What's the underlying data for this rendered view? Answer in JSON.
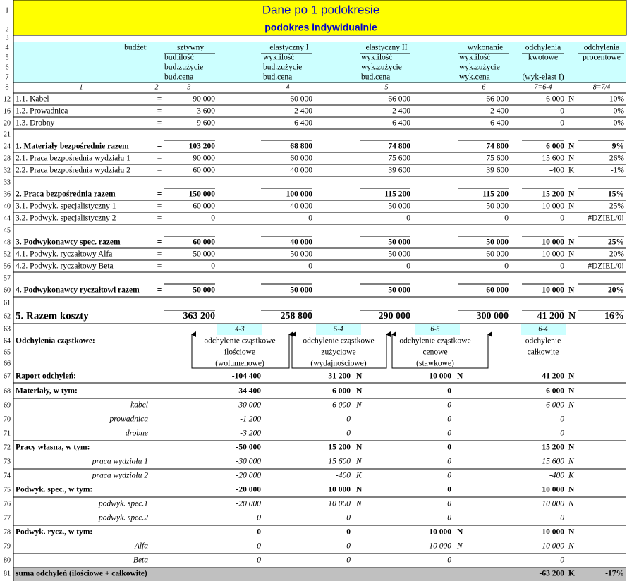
{
  "header": {
    "title": "Dane po 1 podokresie",
    "subtitle": "podokres indywidualnie"
  },
  "upper": {
    "rows": [
      {
        "n": "1"
      },
      {
        "n": "2"
      },
      {
        "n": "3"
      },
      {
        "n": "4",
        "label": "budżet:",
        "c3": "sztywny",
        "c4": "elastyczny I",
        "c5": "elastyczny II",
        "c6": "wykonanie",
        "c7": "odchylenia",
        "c8": "odchylenia"
      },
      {
        "n": "5",
        "c3": "bud.ilość",
        "c4": "wyk.ilość",
        "c5": "wyk.ilość",
        "c6": "wyk.ilość",
        "c7": "kwotowe",
        "c8": "procentowe"
      },
      {
        "n": "6",
        "c3": "bud.zużycie",
        "c4": "bud.zużycie",
        "c5": "wyk.zużycie",
        "c6": "wyk.zużycie"
      },
      {
        "n": "7",
        "c3": "bud.cena",
        "c4": "bud.cena",
        "c5": "bud.cena",
        "c6": "wyk.cena",
        "c7": "(wyk-elast I)"
      },
      {
        "n": "8",
        "label": "1",
        "eq": "2",
        "c3": "3",
        "c4": "4",
        "c5": "5",
        "c6": "6",
        "c7": "7=6-4",
        "c8": "8=7/4"
      },
      {
        "n": "12",
        "label": "1.1. Kabel",
        "eq": "=",
        "c3": "90 000",
        "c4": "60 000",
        "c5": "66 000",
        "c6": "66 000",
        "c7": "6 000",
        "f": "N",
        "c8": "10%"
      },
      {
        "n": "16",
        "label": "1.2. Prowadnica",
        "eq": "=",
        "c3": "3 600",
        "c4": "2 400",
        "c5": "2 400",
        "c6": "2 400",
        "c7": "0",
        "c8": "0%"
      },
      {
        "n": "20",
        "label": "1.3. Drobny",
        "eq": "=",
        "c3": "9 600",
        "c4": "6 400",
        "c5": "6 400",
        "c6": "6 400",
        "c7": "0",
        "c8": "0%"
      },
      {
        "n": "21"
      },
      {
        "n": "24",
        "style": "bold",
        "label": "1. Materiały bezpośrednie razem",
        "eq": "=",
        "c3": "103 200",
        "c4": "68 800",
        "c5": "74 800",
        "c6": "74 800",
        "c7": "6 000",
        "f": "N",
        "c8": "9%"
      },
      {
        "n": "28",
        "label": "2.1. Praca bezpośrednia wydziału 1",
        "eq": "=",
        "c3": "90 000",
        "c4": "60 000",
        "c5": "75 600",
        "c6": "75 600",
        "c7": "15 600",
        "f": "N",
        "c8": "26%"
      },
      {
        "n": "32",
        "label": "2.2. Praca bezpośrednia wydziału 2",
        "eq": "=",
        "c3": "60 000",
        "c4": "40 000",
        "c5": "39 600",
        "c6": "39 600",
        "c7": "-400",
        "f": "K",
        "c8": "-1%"
      },
      {
        "n": "33"
      },
      {
        "n": "36",
        "style": "bold",
        "label": "2. Praca bezpośrednia razem",
        "eq": "=",
        "c3": "150 000",
        "c4": "100 000",
        "c5": "115 200",
        "c6": "115 200",
        "c7": "15 200",
        "f": "N",
        "c8": "15%"
      },
      {
        "n": "40",
        "label": "3.1. Podwyk. specjalistyczny 1",
        "eq": "=",
        "c3": "60 000",
        "c4": "40 000",
        "c5": "50 000",
        "c6": "50 000",
        "c7": "10 000",
        "f": "N",
        "c8": "25%"
      },
      {
        "n": "44",
        "label": "3.2. Podwyk. specjalistyczny 2",
        "eq": "=",
        "c3": "0",
        "c4": "0",
        "c5": "0",
        "c6": "0",
        "c7": "0",
        "c8": "#DZIEL/0!"
      },
      {
        "n": "45"
      },
      {
        "n": "48",
        "style": "bold",
        "label": "3. Podwykonawcy spec. razem",
        "eq": "=",
        "c3": "60 000",
        "c4": "40 000",
        "c5": "50 000",
        "c6": "50 000",
        "c7": "10 000",
        "f": "N",
        "c8": "25%"
      },
      {
        "n": "52",
        "label": "4.1. Podwyk. ryczałtowy Alfa",
        "eq": "=",
        "c3": "50 000",
        "c4": "50 000",
        "c5": "50 000",
        "c6": "60 000",
        "c7": "10 000",
        "f": "N",
        "c8": "20%"
      },
      {
        "n": "56",
        "label": "4.2. Podwyk. ryczałtowy Beta",
        "eq": "=",
        "c3": "0",
        "c4": "0",
        "c5": "0",
        "c6": "0",
        "c7": "0",
        "c8": "#DZIEL/0!"
      },
      {
        "n": "57"
      },
      {
        "n": "60",
        "style": "bold",
        "label": "4. Podwykonawcy ryczałtowi razem",
        "eq": "=",
        "c3": "50 000",
        "c4": "50 000",
        "c5": "50 000",
        "c6": "60 000",
        "c7": "10 000",
        "f": "N",
        "c8": "20%"
      },
      {
        "n": "61"
      },
      {
        "n": "62",
        "style": "big",
        "label": "5. Razem koszty",
        "c3": "363 200",
        "c4": "258 800",
        "c5": "290 000",
        "c6": "300 000",
        "c7": "41 200",
        "f": "N",
        "c8": "16%"
      }
    ]
  },
  "lower": {
    "legend": [
      {
        "n": "63",
        "a": "4-3",
        "b": "5-4",
        "c": "6-5",
        "d": "6-4"
      },
      {
        "n": "64",
        "label": "Odchylenia cząstkowe:",
        "a": "odchylenie cząstkowe",
        "b": "odchylenie cząstkowe",
        "c": "odchylenie cząstkowe",
        "d": "odchylenie"
      },
      {
        "n": "65",
        "a": "ilościowe",
        "b": "zużyciowe",
        "c": "cenowe",
        "d": "całkowite"
      },
      {
        "n": "66",
        "a": "(wolumenowe)",
        "b": "(wydajnościowe)",
        "c": "(stawkowe)"
      }
    ],
    "rows": [
      {
        "n": "67",
        "style": "bold",
        "label": "Raport odchyleń:",
        "a": "-104 400",
        "b": "31 200",
        "bf": "N",
        "c": "10 000",
        "cf": "N",
        "d": "41 200",
        "df": "N"
      },
      {
        "n": "68",
        "style": "bold",
        "label": "Materiały, w tym:",
        "a": "-34 400",
        "b": "6 000",
        "bf": "N",
        "c": "0",
        "d": "6 000",
        "df": "N"
      },
      {
        "n": "69",
        "style": "italic",
        "label": "kabel",
        "a": "-30 000",
        "b": "6 000",
        "bf": "N",
        "c": "0",
        "d": "6 000",
        "df": "N"
      },
      {
        "n": "70",
        "style": "italic",
        "label": "prowadnica",
        "a": "-1 200",
        "b": "0",
        "c": "0",
        "d": "0"
      },
      {
        "n": "71",
        "style": "italic",
        "label": "drobne",
        "a": "-3 200",
        "b": "0",
        "c": "0",
        "d": "0"
      },
      {
        "n": "72",
        "style": "bold",
        "label": "Pracy własna, w tym:",
        "a": "-50 000",
        "b": "15 200",
        "bf": "N",
        "c": "0",
        "d": "15 200",
        "df": "N"
      },
      {
        "n": "73",
        "style": "italic",
        "label": "praca wydziału 1",
        "a": "-30 000",
        "b": "15 600",
        "bf": "N",
        "c": "0",
        "d": "15 600",
        "df": "N"
      },
      {
        "n": "74",
        "style": "italic",
        "label": "praca wydziału 2",
        "a": "-20 000",
        "b": "-400",
        "bf": "K",
        "c": "0",
        "d": "-400",
        "df": "K"
      },
      {
        "n": "75",
        "style": "bold",
        "label": "Podwyk. spec., w tym:",
        "a": "-20 000",
        "b": "10 000",
        "bf": "N",
        "c": "0",
        "d": "10 000",
        "df": "N"
      },
      {
        "n": "76",
        "style": "italic",
        "label": "podwyk. spec.1",
        "a": "-20 000",
        "b": "10 000",
        "bf": "N",
        "c": "0",
        "d": "10 000",
        "df": "N"
      },
      {
        "n": "77",
        "style": "italic",
        "label": "podwyk. spec.2",
        "a": "0",
        "b": "0",
        "c": "0",
        "d": "0"
      },
      {
        "n": "78",
        "style": "bold",
        "label": "Podwyk. rycz., w tym:",
        "a": "0",
        "b": "0",
        "c": "10 000",
        "cf": "N",
        "d": "10 000",
        "df": "N"
      },
      {
        "n": "79",
        "style": "italic",
        "label": "Alfa",
        "a": "0",
        "b": "0",
        "c": "10 000",
        "cf": "N",
        "d": "10 000",
        "df": "N"
      },
      {
        "n": "80",
        "style": "italic",
        "label": "Beta",
        "a": "0",
        "b": "0",
        "c": "0",
        "d": "0"
      },
      {
        "n": "81",
        "style": "bold",
        "label": "suma odchyleń (ilościowe + całkowite)",
        "d": "-63 200",
        "df": "K",
        "e": "-17%"
      }
    ]
  }
}
